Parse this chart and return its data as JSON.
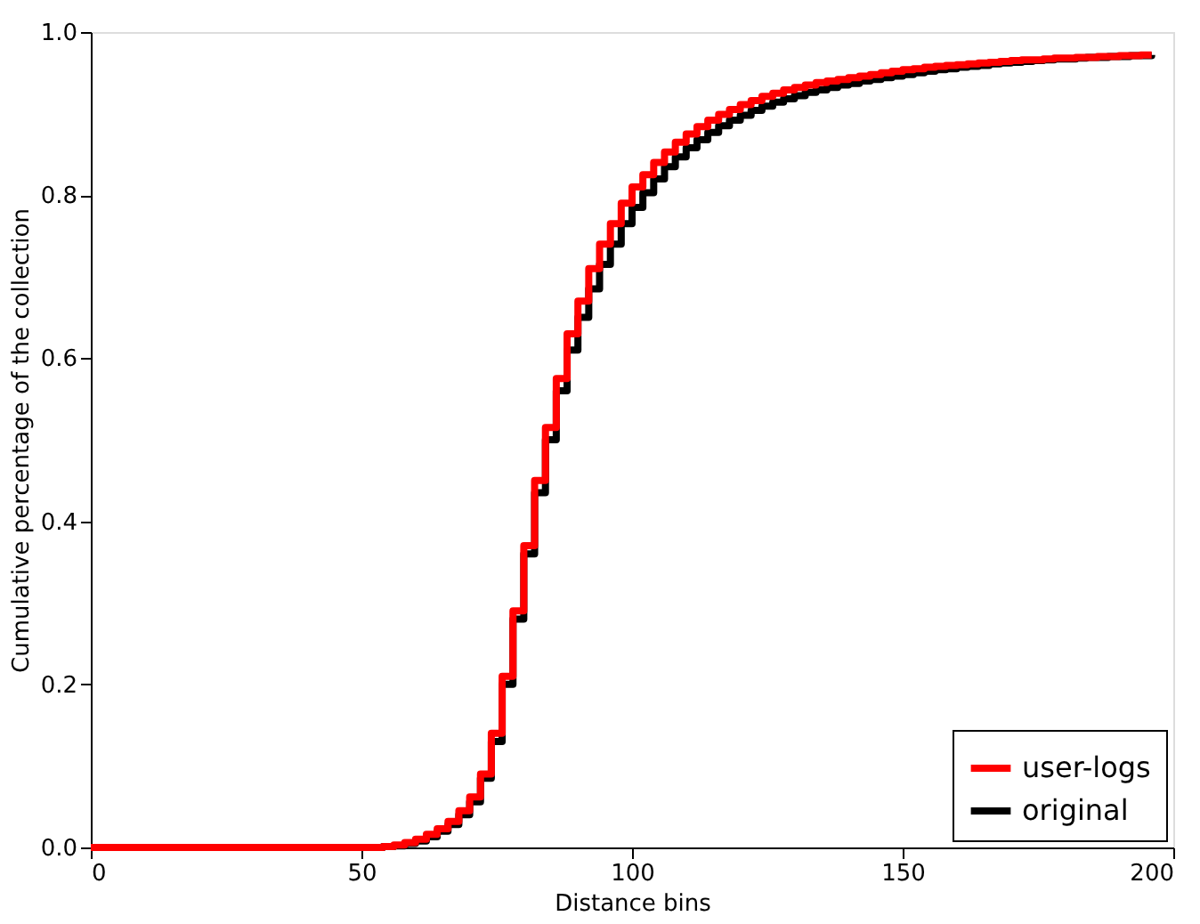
{
  "chart_data": {
    "type": "step",
    "xlabel": "Distance bins",
    "ylabel": "Cumulative percentage of the collection",
    "xlim": [
      0,
      200
    ],
    "ylim": [
      0,
      1.0
    ],
    "xticks": [
      0,
      50,
      100,
      150,
      200
    ],
    "yticks": [
      {
        "value": 0,
        "label": "0.0"
      },
      {
        "value": 0.2,
        "label": "0.2"
      },
      {
        "value": 0.4,
        "label": "0.4"
      },
      {
        "value": 0.6,
        "label": "0.6"
      },
      {
        "value": 0.8,
        "label": "0.8"
      },
      {
        "value": 1.0,
        "label": "1.0"
      }
    ],
    "x": [
      0,
      54,
      56,
      58,
      60,
      62,
      64,
      66,
      68,
      70,
      72,
      74,
      76,
      78,
      80,
      82,
      84,
      86,
      88,
      90,
      92,
      94,
      96,
      98,
      100,
      102,
      104,
      106,
      108,
      110,
      112,
      114,
      116,
      118,
      120,
      122,
      124,
      126,
      128,
      130,
      132,
      134,
      136,
      138,
      140,
      142,
      144,
      146,
      148,
      150,
      152,
      154,
      156,
      158,
      160,
      162,
      164,
      166,
      168,
      170,
      172,
      174,
      176,
      178,
      180,
      182,
      184,
      186,
      188,
      190,
      192,
      194,
      196
    ],
    "series": [
      {
        "name": "user-logs",
        "color": "#ff0000",
        "values": [
          0,
          0.001,
          0.003,
          0.006,
          0.01,
          0.016,
          0.023,
          0.032,
          0.045,
          0.062,
          0.09,
          0.14,
          0.21,
          0.29,
          0.37,
          0.45,
          0.515,
          0.575,
          0.63,
          0.67,
          0.71,
          0.74,
          0.765,
          0.79,
          0.81,
          0.825,
          0.84,
          0.853,
          0.865,
          0.875,
          0.884,
          0.892,
          0.899,
          0.905,
          0.911,
          0.916,
          0.921,
          0.925,
          0.929,
          0.932,
          0.935,
          0.938,
          0.94,
          0.942,
          0.944,
          0.946,
          0.948,
          0.95,
          0.952,
          0.954,
          0.955,
          0.957,
          0.958,
          0.959,
          0.96,
          0.961,
          0.962,
          0.963,
          0.964,
          0.965,
          0.966,
          0.966,
          0.967,
          0.968,
          0.968,
          0.969,
          0.969,
          0.97,
          0.97,
          0.971,
          0.971,
          0.972,
          0.972
        ]
      },
      {
        "name": "original",
        "color": "#000000",
        "values": [
          0,
          0.001,
          0.002,
          0.005,
          0.008,
          0.013,
          0.02,
          0.028,
          0.04,
          0.056,
          0.085,
          0.13,
          0.2,
          0.28,
          0.36,
          0.435,
          0.5,
          0.56,
          0.61,
          0.65,
          0.685,
          0.715,
          0.74,
          0.765,
          0.785,
          0.803,
          0.82,
          0.835,
          0.847,
          0.858,
          0.868,
          0.877,
          0.885,
          0.892,
          0.898,
          0.904,
          0.909,
          0.914,
          0.918,
          0.922,
          0.926,
          0.929,
          0.932,
          0.935,
          0.937,
          0.94,
          0.942,
          0.944,
          0.946,
          0.948,
          0.95,
          0.952,
          0.954,
          0.955,
          0.957,
          0.958,
          0.959,
          0.961,
          0.962,
          0.963,
          0.964,
          0.965,
          0.966,
          0.967,
          0.967,
          0.968,
          0.969,
          0.969,
          0.97,
          0.97,
          0.971,
          0.971,
          0.972
        ]
      }
    ],
    "legend": "bottom right",
    "grid": false,
    "marker": "none",
    "line_style": "solid"
  }
}
